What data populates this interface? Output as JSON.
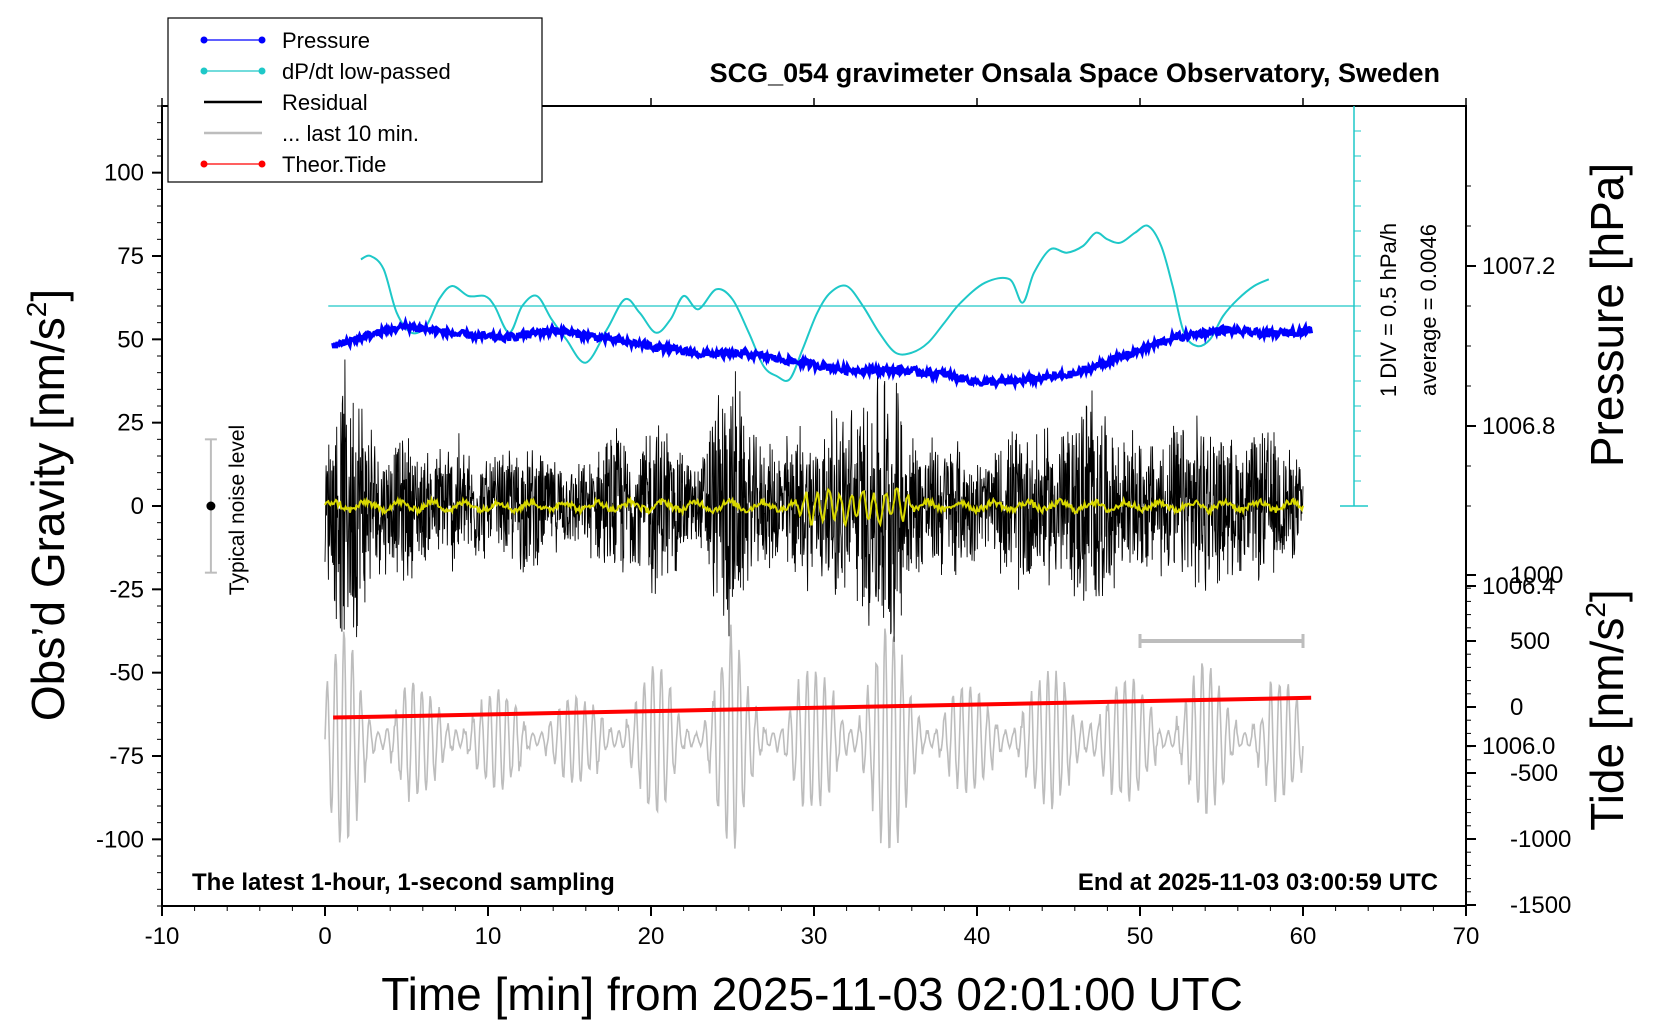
{
  "chart_data": {
    "type": "line",
    "title": "SCG_054 gravimeter Onsala Space Observatory, Sweden",
    "xlabel": "Time [min] from 2025-11-03 02:01:00 UTC",
    "xlim": [
      -10,
      70
    ],
    "x_ticks": [
      "-10",
      "0",
      "10",
      "20",
      "30",
      "40",
      "50",
      "60",
      "70"
    ],
    "left_axis": {
      "label_main": "Obs’d Gravity [nm/s",
      "label_sup": "2",
      "label_end": "]",
      "ylim": [
        -120,
        120
      ],
      "ticks": [
        "100",
        "75",
        "50",
        "25",
        "0",
        "-25",
        "-50",
        "-75",
        "-100"
      ]
    },
    "pressure_axis": {
      "label": "Pressure [hPa]",
      "ylim": [
        1005.6,
        1007.6
      ],
      "ticks": [
        "1007.2",
        "1006.8",
        "1006.4",
        "1006.0"
      ]
    },
    "tide_axis": {
      "label_main": "Tide [nm/s",
      "label_sup": "2",
      "label_end": "]",
      "ylim": [
        -1500,
        1500
      ],
      "ticks": [
        "1000",
        "500",
        "0",
        "-500",
        "-1000",
        "-1500"
      ]
    },
    "dpdt_scale": {
      "label": "1 DIV = 0.5 hPa/h",
      "average": "average = 0.0046"
    },
    "noise_level_label": "Typical noise level",
    "footer_left": "The latest 1-hour, 1-second sampling",
    "footer_right": "End at 2025-11-03 03:00:59 UTC",
    "last10_bar": [
      50,
      60
    ],
    "legend": {
      "placement": "top-left",
      "entries": [
        {
          "label": "Pressure",
          "color": "#0000ff",
          "marker": "dot"
        },
        {
          "label": "dP/dt low-passed",
          "color": "#1ec8c8",
          "marker": "dot"
        },
        {
          "label": "Residual",
          "color": "#000000",
          "marker": "line"
        },
        {
          "label": "... last 10 min.",
          "color": "#bdbdbd",
          "marker": "line"
        },
        {
          "label": "Theor.Tide",
          "color": "#ff0000",
          "marker": "dot"
        }
      ]
    },
    "series": [
      {
        "name": "Pressure",
        "axis": "pressure",
        "color": "#0000ff",
        "x": [
          0.5,
          3,
          5,
          8,
          11,
          14,
          17,
          20,
          23,
          26,
          29,
          32,
          35,
          38,
          40,
          42,
          44,
          46,
          48,
          50,
          52,
          55,
          58,
          60.5
        ],
        "values": [
          1007.0,
          1007.03,
          1007.05,
          1007.03,
          1007.02,
          1007.04,
          1007.02,
          1007.0,
          1006.98,
          1006.98,
          1006.96,
          1006.94,
          1006.94,
          1006.93,
          1006.91,
          1006.91,
          1006.92,
          1006.93,
          1006.96,
          1006.99,
          1007.02,
          1007.04,
          1007.03,
          1007.04
        ]
      },
      {
        "name": "dP/dt low-passed",
        "axis": "left",
        "color": "#1ec8c8",
        "x": [
          2.2,
          2.8,
          3.6,
          4.4,
          5.3,
          6.2,
          7,
          7.8,
          8.8,
          9.8,
          10.4,
          11.3,
          12.1,
          13,
          13.9,
          14.8,
          16,
          17.3,
          18.4,
          19.3,
          20.3,
          21.2,
          22,
          22.9,
          24,
          25,
          26,
          26.9,
          27.7,
          28.5,
          29.3,
          30.2,
          31,
          32,
          33,
          34,
          35,
          36,
          37,
          38,
          39,
          40.5,
          42,
          42.8,
          43.5,
          44.5,
          45.5,
          46.5,
          47.3,
          48,
          48.8,
          49.7,
          50.5,
          51.3,
          52,
          52.7,
          53.5,
          54.3,
          55.1,
          56,
          57,
          57.9
        ],
        "values": [
          74,
          75,
          71,
          58,
          52,
          54,
          62,
          66,
          63,
          63,
          60,
          52,
          60,
          63,
          56,
          50,
          43,
          53,
          62,
          58,
          52,
          56,
          63,
          59,
          65,
          62,
          52,
          42,
          39,
          38,
          47,
          58,
          64,
          66,
          60,
          52,
          46,
          46,
          49,
          55,
          61,
          67,
          68,
          61,
          70,
          77,
          76,
          78,
          82,
          80,
          79,
          82,
          84,
          78,
          66,
          52,
          48,
          50,
          57,
          62,
          66,
          68
        ]
      },
      {
        "name": "Residual",
        "axis": "left",
        "color": "#000000",
        "x_range": [
          0,
          60
        ],
        "envelope_x": [
          0,
          1,
          2,
          3,
          4,
          5,
          6,
          7,
          8,
          9,
          10,
          11,
          12,
          13,
          14,
          15,
          16,
          17,
          18,
          19,
          20,
          21,
          22,
          23,
          24,
          25,
          26,
          27,
          28,
          29,
          30,
          31,
          32,
          33,
          34,
          35,
          36,
          37,
          38,
          39,
          40,
          41,
          42,
          43,
          44,
          45,
          46,
          47,
          48,
          49,
          50,
          51,
          52,
          53,
          54,
          55,
          56,
          57,
          58,
          59,
          60
        ],
        "envelope_values": [
          20,
          45,
          45,
          25,
          20,
          25,
          18,
          20,
          24,
          20,
          16,
          18,
          22,
          20,
          15,
          14,
          14,
          22,
          26,
          20,
          30,
          28,
          18,
          14,
          38,
          48,
          24,
          20,
          22,
          28,
          25,
          30,
          34,
          36,
          48,
          45,
          26,
          22,
          24,
          22,
          16,
          18,
          24,
          30,
          24,
          28,
          30,
          44,
          28,
          22,
          24,
          22,
          26,
          28,
          30,
          24,
          22,
          24,
          26,
          20,
          14
        ]
      },
      {
        "name": "... last 10 min.",
        "axis": "left",
        "color": "#bdbdbd",
        "x_range": [
          0,
          60
        ],
        "offset": -70,
        "note_ref": "last10_bar"
      },
      {
        "name": "Theor.Tide",
        "axis": "tide",
        "color": "#ff0000",
        "x": [
          0.5,
          60.5
        ],
        "values": [
          -80,
          70
        ]
      }
    ]
  }
}
